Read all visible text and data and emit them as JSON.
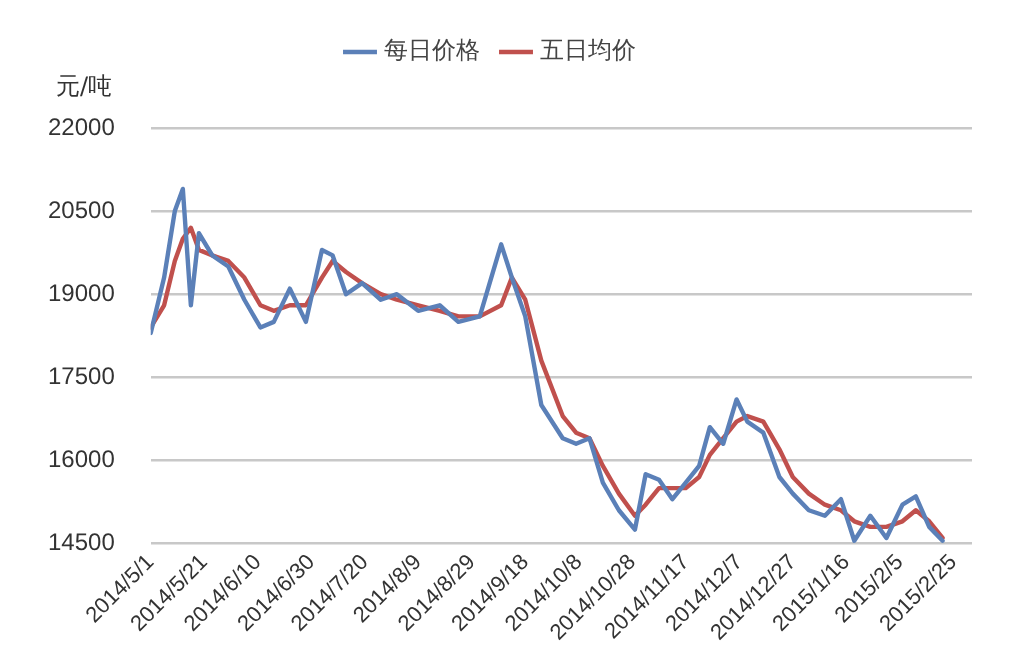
{
  "chart_data": {
    "type": "line",
    "ylabel": "元/吨",
    "x": [
      "2014-05-01",
      "2014-05-06",
      "2014-05-10",
      "2014-05-13",
      "2014-05-16",
      "2014-05-19",
      "2014-05-24",
      "2014-05-30",
      "2014-06-05",
      "2014-06-11",
      "2014-06-16",
      "2014-06-22",
      "2014-06-28",
      "2014-07-04",
      "2014-07-08",
      "2014-07-13",
      "2014-07-19",
      "2014-07-26",
      "2014-08-01",
      "2014-08-09",
      "2014-08-17",
      "2014-08-24",
      "2014-09-01",
      "2014-09-09",
      "2014-09-13",
      "2014-09-18",
      "2014-09-24",
      "2014-10-02",
      "2014-10-07",
      "2014-10-12",
      "2014-10-17",
      "2014-10-23",
      "2014-10-29",
      "2014-11-02",
      "2014-11-07",
      "2014-11-12",
      "2014-11-17",
      "2014-11-22",
      "2014-11-26",
      "2014-12-01",
      "2014-12-06",
      "2014-12-10",
      "2014-12-16",
      "2014-12-22",
      "2014-12-27",
      "2015-01-02",
      "2015-01-08",
      "2015-01-14",
      "2015-01-19",
      "2015-01-25",
      "2015-01-31",
      "2015-02-06",
      "2015-02-11",
      "2015-02-16",
      "2015-02-21"
    ],
    "series": [
      {
        "name": "每日价格",
        "color": "#5b80b8",
        "values": [
          18300,
          19300,
          20500,
          20900,
          18800,
          20100,
          19700,
          19500,
          18900,
          18400,
          18500,
          19100,
          18500,
          19800,
          19700,
          19000,
          19200,
          18900,
          19000,
          18700,
          18800,
          18500,
          18600,
          19900,
          19300,
          18600,
          17000,
          16400,
          16300,
          16400,
          15600,
          15100,
          14750,
          15750,
          15650,
          15300,
          15600,
          15900,
          16600,
          16300,
          17100,
          16700,
          16500,
          15700,
          15400,
          15100,
          15000,
          15300,
          14550,
          15000,
          14600,
          15200,
          15350,
          14800,
          14550
        ]
      },
      {
        "name": "五日均价",
        "color": "#c0504d",
        "values": [
          18400,
          18800,
          19600,
          20000,
          20200,
          19800,
          19700,
          19600,
          19300,
          18800,
          18700,
          18800,
          18800,
          19300,
          19600,
          19400,
          19200,
          19000,
          18900,
          18800,
          18700,
          18600,
          18600,
          18800,
          19300,
          18900,
          17800,
          16800,
          16500,
          16400,
          15900,
          15400,
          15000,
          15200,
          15500,
          15500,
          15500,
          15700,
          16100,
          16400,
          16700,
          16800,
          16700,
          16200,
          15700,
          15400,
          15200,
          15100,
          14900,
          14800,
          14800,
          14900,
          15100,
          14900,
          14600
        ]
      }
    ],
    "xlim": [
      "2014-05-01",
      "2015-03-04"
    ],
    "xticks": [
      {
        "value": "2014-05-01",
        "label": "2014/5/1"
      },
      {
        "value": "2014-05-21",
        "label": "2014/5/21"
      },
      {
        "value": "2014-06-10",
        "label": "2014/6/10"
      },
      {
        "value": "2014-06-30",
        "label": "2014/6/30"
      },
      {
        "value": "2014-07-20",
        "label": "2014/7/20"
      },
      {
        "value": "2014-08-09",
        "label": "2014/8/9"
      },
      {
        "value": "2014-08-29",
        "label": "2014/8/29"
      },
      {
        "value": "2014-09-18",
        "label": "2014/9/18"
      },
      {
        "value": "2014-10-08",
        "label": "2014/10/8"
      },
      {
        "value": "2014-10-28",
        "label": "2014/10/28"
      },
      {
        "value": "2014-11-17",
        "label": "2014/11/17"
      },
      {
        "value": "2014-12-07",
        "label": "2014/12/7"
      },
      {
        "value": "2014-12-27",
        "label": "2014/12/27"
      },
      {
        "value": "2015-01-16",
        "label": "2015/1/16"
      },
      {
        "value": "2015-02-05",
        "label": "2015/2/5"
      },
      {
        "value": "2015-02-25",
        "label": "2015/2/25"
      }
    ],
    "ylim": [
      14500,
      22000
    ],
    "yticks": [
      14500,
      16000,
      17500,
      19000,
      20500,
      22000
    ],
    "grid": "y",
    "legend": "top",
    "marker": "none",
    "line_style": "solid"
  }
}
